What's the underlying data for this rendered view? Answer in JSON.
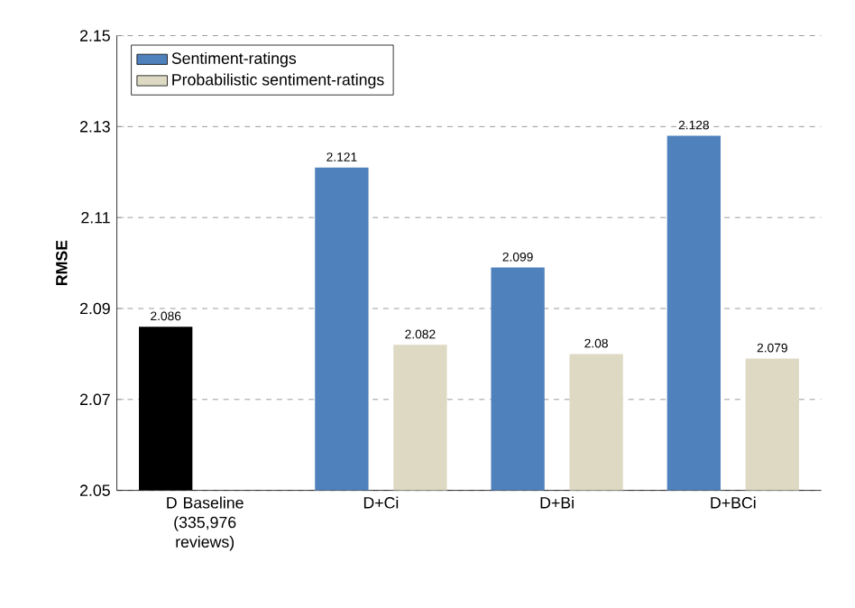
{
  "chart_data": {
    "type": "bar",
    "ylabel": "RMSE",
    "categories": [
      "D Baseline (335,976 reviews)",
      "D+Ci",
      "D+Bi",
      "D+BCi"
    ],
    "series": [
      {
        "name": "Sentiment-ratings",
        "color": "#4f81bd",
        "colors": [
          "#000000",
          "#4f81bd",
          "#4f81bd",
          "#4f81bd"
        ],
        "values": [
          2.086,
          2.121,
          2.099,
          2.128
        ]
      },
      {
        "name": "Probabilistic sentiment-ratings",
        "color": "#ddd9c3",
        "values": [
          null,
          2.082,
          2.08,
          2.079
        ]
      }
    ],
    "ylim": [
      2.05,
      2.15
    ],
    "yticks": [
      2.05,
      2.07,
      2.09,
      2.11,
      2.13,
      2.15
    ],
    "grid": "y",
    "legend": "top left",
    "data_labels": true
  }
}
